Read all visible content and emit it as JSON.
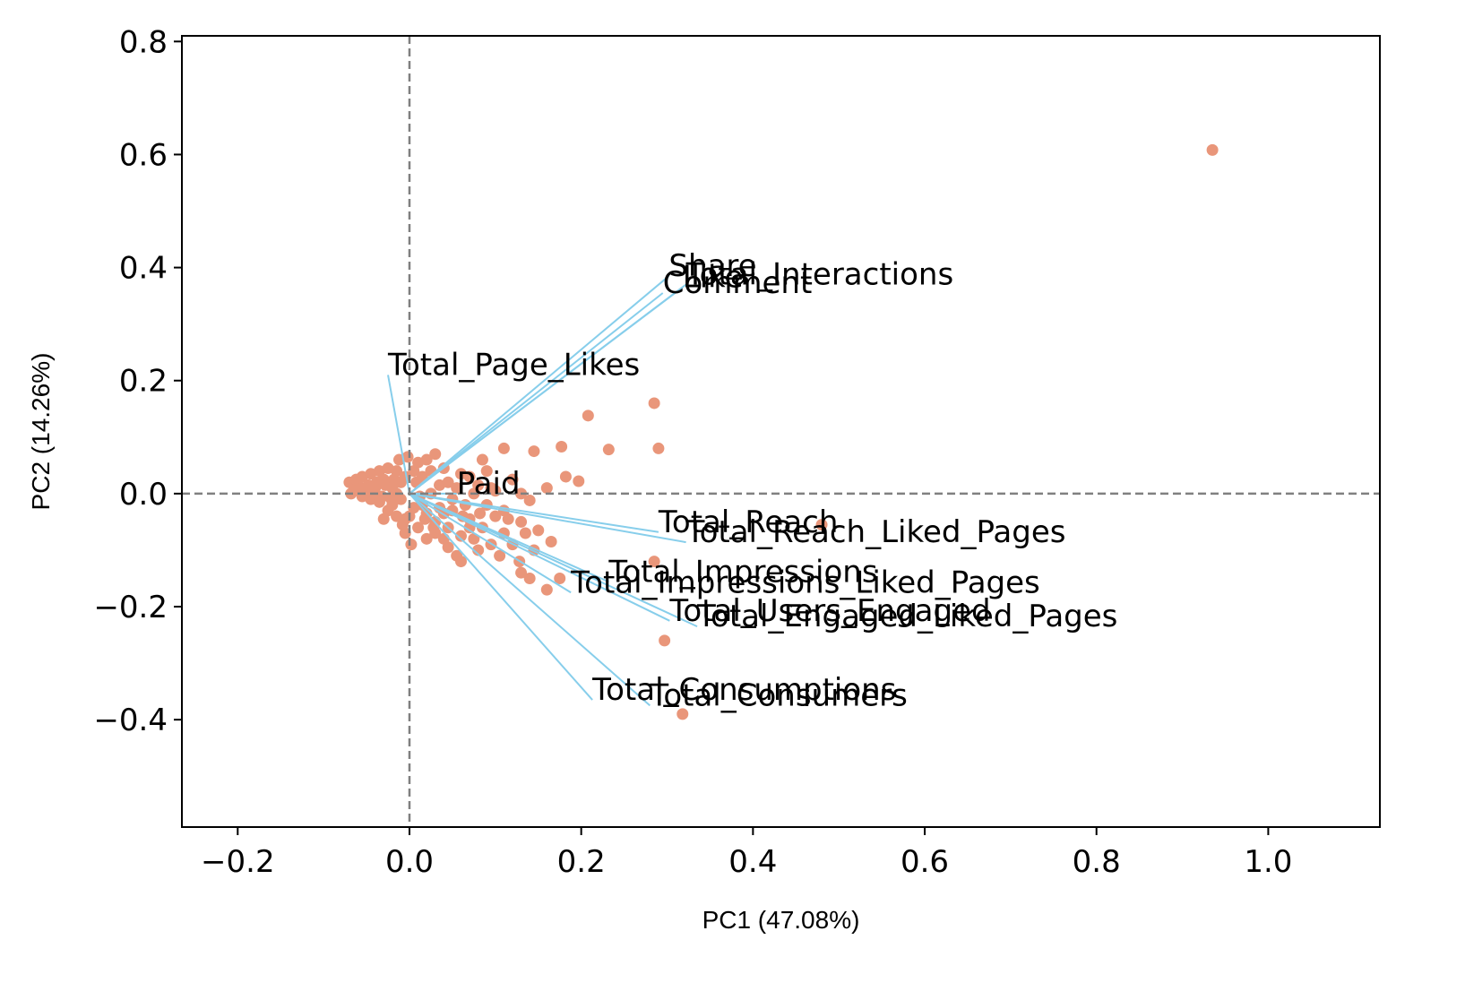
{
  "chart_data": {
    "type": "scatter",
    "subtype": "pca-biplot",
    "xlabel": "PC1 (47.08%)",
    "ylabel": "PC2 (14.26%)",
    "xlim": [
      -0.265,
      1.13
    ],
    "ylim": [
      -0.59,
      0.81
    ],
    "xticks": [
      -0.2,
      0.0,
      0.2,
      0.4,
      0.6,
      0.8,
      1.0
    ],
    "yticks": [
      -0.4,
      -0.2,
      0.0,
      0.2,
      0.4,
      0.6,
      0.8
    ],
    "xtick_labels": [
      "−0.2",
      "0.0",
      "0.2",
      "0.4",
      "0.6",
      "0.8",
      "1.0"
    ],
    "ytick_labels": [
      "−0.4",
      "−0.2",
      "0.0",
      "0.2",
      "0.4",
      "0.6",
      "0.8"
    ],
    "grid": false,
    "reference_lines": {
      "x": 0.0,
      "y": 0.0,
      "style": "dashed",
      "color": "#808080"
    },
    "point_color": "#E9967A",
    "arrow_color": "#87CEEB",
    "loadings": [
      {
        "name": "Share",
        "x": 0.302,
        "y": 0.385
      },
      {
        "name": "Total_Interactions",
        "x": 0.322,
        "y": 0.37
      },
      {
        "name": "Like",
        "x": 0.318,
        "y": 0.365
      },
      {
        "name": "Comment",
        "x": 0.295,
        "y": 0.355
      },
      {
        "name": "Total_Page_Likes",
        "x": -0.025,
        "y": 0.21
      },
      {
        "name": "Paid",
        "x": 0.055,
        "y": 0.0
      },
      {
        "name": "Total_Reach",
        "x": 0.29,
        "y": -0.068
      },
      {
        "name": "Total_Reach_Liked_Pages",
        "x": 0.322,
        "y": -0.086
      },
      {
        "name": "Total_Impressions",
        "x": 0.232,
        "y": -0.156
      },
      {
        "name": "Total_Impressions_Liked_Pages",
        "x": 0.188,
        "y": -0.175
      },
      {
        "name": "Total_Engaged_Liked_Pages",
        "x": 0.335,
        "y": -0.235
      },
      {
        "name": "Total_Users_Engaged",
        "x": 0.303,
        "y": -0.225
      },
      {
        "name": "Total_Consumptions",
        "x": 0.213,
        "y": -0.365
      },
      {
        "name": "Total_Consumers",
        "x": 0.28,
        "y": -0.375
      }
    ],
    "points": [
      {
        "x": 0.935,
        "y": 0.608
      },
      {
        "x": 0.285,
        "y": 0.16
      },
      {
        "x": 0.208,
        "y": 0.138
      },
      {
        "x": 0.29,
        "y": 0.08
      },
      {
        "x": 0.232,
        "y": 0.078
      },
      {
        "x": 0.177,
        "y": 0.083
      },
      {
        "x": 0.145,
        "y": 0.075
      },
      {
        "x": 0.11,
        "y": 0.08
      },
      {
        "x": 0.085,
        "y": 0.06
      },
      {
        "x": 0.09,
        "y": 0.04
      },
      {
        "x": 0.182,
        "y": 0.03
      },
      {
        "x": 0.197,
        "y": 0.022
      },
      {
        "x": 0.16,
        "y": 0.01
      },
      {
        "x": 0.12,
        "y": 0.025
      },
      {
        "x": 0.13,
        "y": 0.0
      },
      {
        "x": 0.14,
        "y": -0.012
      },
      {
        "x": 0.1,
        "y": 0.005
      },
      {
        "x": 0.08,
        "y": 0.015
      },
      {
        "x": 0.07,
        "y": 0.03
      },
      {
        "x": 0.06,
        "y": 0.035
      },
      {
        "x": 0.04,
        "y": 0.045
      },
      {
        "x": 0.02,
        "y": 0.06
      },
      {
        "x": 0.01,
        "y": 0.055
      },
      {
        "x": 0.03,
        "y": 0.07
      },
      {
        "x": 0.005,
        "y": 0.04
      },
      {
        "x": 0.48,
        "y": -0.055
      },
      {
        "x": 0.285,
        "y": -0.12
      },
      {
        "x": 0.297,
        "y": -0.26
      },
      {
        "x": 0.318,
        "y": -0.39
      },
      {
        "x": 0.165,
        "y": -0.085
      },
      {
        "x": 0.15,
        "y": -0.065
      },
      {
        "x": 0.13,
        "y": -0.05
      },
      {
        "x": 0.115,
        "y": -0.045
      },
      {
        "x": 0.1,
        "y": -0.04
      },
      {
        "x": 0.135,
        "y": -0.07
      },
      {
        "x": 0.12,
        "y": -0.09
      },
      {
        "x": 0.095,
        "y": -0.09
      },
      {
        "x": 0.075,
        "y": -0.08
      },
      {
        "x": 0.06,
        "y": -0.075
      },
      {
        "x": 0.045,
        "y": -0.06
      },
      {
        "x": 0.03,
        "y": -0.05
      },
      {
        "x": 0.05,
        "y": -0.03
      },
      {
        "x": 0.07,
        "y": -0.045
      },
      {
        "x": 0.085,
        "y": -0.06
      },
      {
        "x": 0.11,
        "y": -0.07
      },
      {
        "x": 0.13,
        "y": -0.14
      },
      {
        "x": 0.14,
        "y": -0.15
      },
      {
        "x": 0.16,
        "y": -0.17
      },
      {
        "x": 0.175,
        "y": -0.15
      },
      {
        "x": 0.128,
        "y": -0.12
      },
      {
        "x": 0.105,
        "y": -0.11
      },
      {
        "x": 0.08,
        "y": -0.1
      },
      {
        "x": 0.055,
        "y": -0.11
      },
      {
        "x": 0.045,
        "y": -0.095
      },
      {
        "x": 0.06,
        "y": -0.12
      },
      {
        "x": 0.02,
        "y": -0.08
      },
      {
        "x": 0.01,
        "y": -0.06
      },
      {
        "x": -0.005,
        "y": -0.07
      },
      {
        "x": 0.0,
        "y": -0.04
      },
      {
        "x": 0.015,
        "y": -0.02
      },
      {
        "x": 0.025,
        "y": 0.0
      },
      {
        "x": 0.035,
        "y": 0.015
      },
      {
        "x": 0.045,
        "y": 0.02
      },
      {
        "x": 0.05,
        "y": -0.01
      },
      {
        "x": 0.065,
        "y": -0.02
      },
      {
        "x": 0.09,
        "y": -0.02
      },
      {
        "x": 0.11,
        "y": -0.03
      },
      {
        "x": 0.075,
        "y": 0.0
      },
      {
        "x": 0.095,
        "y": 0.01
      },
      {
        "x": 0.04,
        "y": -0.035
      },
      {
        "x": 0.02,
        "y": -0.035
      },
      {
        "x": 0.03,
        "y": -0.07
      },
      {
        "x": 0.04,
        "y": -0.08
      },
      {
        "x": -0.01,
        "y": 0.02
      },
      {
        "x": -0.015,
        "y": 0.0
      },
      {
        "x": -0.02,
        "y": -0.02
      },
      {
        "x": -0.03,
        "y": 0.025
      },
      {
        "x": -0.04,
        "y": 0.01
      },
      {
        "x": -0.05,
        "y": 0.0
      },
      {
        "x": -0.06,
        "y": 0.015
      },
      {
        "x": -0.065,
        "y": 0.005
      },
      {
        "x": -0.07,
        "y": 0.02
      },
      {
        "x": -0.055,
        "y": 0.03
      },
      {
        "x": -0.045,
        "y": 0.035
      },
      {
        "x": -0.035,
        "y": 0.04
      },
      {
        "x": -0.025,
        "y": 0.045
      },
      {
        "x": -0.015,
        "y": 0.04
      },
      {
        "x": -0.005,
        "y": 0.03
      },
      {
        "x": -0.045,
        "y": -0.01
      },
      {
        "x": -0.035,
        "y": -0.015
      },
      {
        "x": -0.025,
        "y": -0.03
      },
      {
        "x": -0.015,
        "y": -0.04
      },
      {
        "x": -0.005,
        "y": -0.045
      },
      {
        "x": -0.03,
        "y": -0.045
      },
      {
        "x": -0.02,
        "y": 0.01
      },
      {
        "x": -0.01,
        "y": -0.01
      },
      {
        "x": -0.04,
        "y": 0.0
      },
      {
        "x": -0.055,
        "y": -0.005
      },
      {
        "x": -0.062,
        "y": 0.025
      },
      {
        "x": -0.012,
        "y": 0.06
      },
      {
        "x": -0.002,
        "y": 0.065
      },
      {
        "x": 0.008,
        "y": 0.02
      },
      {
        "x": 0.012,
        "y": -0.005
      },
      {
        "x": 0.005,
        "y": -0.025
      },
      {
        "x": -0.008,
        "y": -0.055
      },
      {
        "x": 0.002,
        "y": -0.09
      },
      {
        "x": 0.015,
        "y": 0.03
      },
      {
        "x": 0.025,
        "y": 0.04
      },
      {
        "x": 0.018,
        "y": -0.045
      },
      {
        "x": 0.028,
        "y": -0.06
      },
      {
        "x": 0.035,
        "y": -0.025
      },
      {
        "x": 0.055,
        "y": 0.01
      },
      {
        "x": 0.062,
        "y": -0.04
      },
      {
        "x": 0.07,
        "y": -0.06
      },
      {
        "x": 0.082,
        "y": -0.035
      },
      {
        "x": -0.028,
        "y": 0.015
      },
      {
        "x": -0.038,
        "y": 0.02
      },
      {
        "x": -0.048,
        "y": 0.015
      },
      {
        "x": -0.058,
        "y": 0.008
      },
      {
        "x": -0.068,
        "y": 0.0
      },
      {
        "x": -0.018,
        "y": 0.025
      },
      {
        "x": -0.022,
        "y": -0.008
      },
      {
        "x": -0.032,
        "y": -0.005
      },
      {
        "x": 0.145,
        "y": -0.1
      }
    ]
  }
}
